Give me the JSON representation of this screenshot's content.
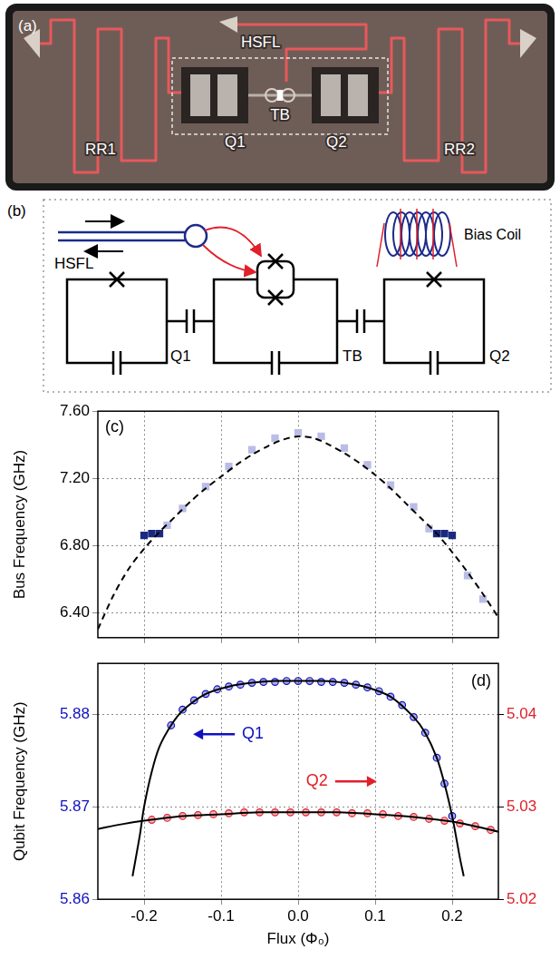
{
  "figure": {
    "a": {
      "label": "(a)",
      "labels": {
        "hsfl": "HSFL",
        "q1": "Q1",
        "q2": "Q2",
        "tb": "TB",
        "rr1": "RR1",
        "rr2": "RR2"
      }
    },
    "b": {
      "label": "(b)",
      "labels": {
        "hsfl": "HSFL",
        "bias_coil": "Bias Coil",
        "q1": "Q1",
        "tb": "TB",
        "q2": "Q2"
      }
    }
  },
  "chart_data": [
    {
      "panel_label": "(c)",
      "type": "scatter",
      "y_label": "Bus Frequency (GHz)",
      "xlim": [
        -0.26,
        0.26
      ],
      "xticks": [
        -0.2,
        -0.1,
        {
          "value": 0,
          "label": "0.0"
        },
        0.1,
        0.2
      ],
      "ylim": [
        6.25,
        7.6
      ],
      "yticks": [
        {
          "value": 6.4,
          "label": "6.40"
        },
        {
          "value": 6.8,
          "label": "6.80"
        },
        {
          "value": 7.2,
          "label": "7.20"
        },
        {
          "value": 7.6,
          "label": "7.60"
        }
      ],
      "grid": true,
      "tick_labels": "y",
      "series": [
        {
          "type": "scatter",
          "marker": "square",
          "color": "#b9bde6",
          "x": [
            -0.17,
            -0.15,
            -0.12,
            -0.09,
            -0.06,
            -0.03,
            0,
            0.03,
            0.06,
            0.09,
            0.12,
            0.15,
            0.17,
            0.22,
            0.24
          ],
          "values": [
            6.92,
            7.02,
            7.15,
            7.27,
            7.37,
            7.44,
            7.47,
            7.45,
            7.38,
            7.28,
            7.16,
            7.03,
            6.9,
            6.62,
            6.48
          ]
        },
        {
          "type": "scatter",
          "marker": "square",
          "color": "#1b2a80",
          "x": [
            -0.2,
            -0.19,
            -0.18,
            0.18,
            0.19,
            0.2
          ],
          "values": [
            6.86,
            6.87,
            6.87,
            6.87,
            6.87,
            6.86
          ]
        },
        {
          "type": "line",
          "line_style": "dashed",
          "color": "#000000",
          "x": [
            -0.26,
            -0.24,
            -0.22,
            -0.2,
            -0.18,
            -0.16,
            -0.14,
            -0.12,
            -0.1,
            -0.08,
            -0.06,
            -0.04,
            -0.02,
            0,
            0.02,
            0.04,
            0.06,
            0.08,
            0.1,
            0.12,
            0.14,
            0.16,
            0.18,
            0.2,
            0.22,
            0.24,
            0.26
          ],
          "values": [
            6.3,
            6.5,
            6.66,
            6.78,
            6.88,
            6.97,
            7.06,
            7.14,
            7.21,
            7.28,
            7.34,
            7.39,
            7.43,
            7.45,
            7.44,
            7.4,
            7.35,
            7.29,
            7.22,
            7.14,
            7.05,
            6.96,
            6.87,
            6.76,
            6.64,
            6.51,
            6.37
          ]
        }
      ]
    },
    {
      "panel_label": "(d)",
      "type": "scatter",
      "x_label": "Flux (Φ₀)",
      "y_label": "Qubit Frequency (GHz)",
      "xlim": [
        -0.26,
        0.26
      ],
      "xticks": [
        -0.2,
        -0.1,
        {
          "value": 0,
          "label": "0.0"
        },
        0.1,
        0.2
      ],
      "ylim": [
        5.86,
        5.8855
      ],
      "yticks": [
        5.86,
        5.87,
        5.88
      ],
      "y2lim": [
        5.02,
        5.0455
      ],
      "y2ticks": [
        5.02,
        5.03,
        5.04
      ],
      "grid": true,
      "annotations": [
        {
          "text": "Q1",
          "color": "#1010c0",
          "axis": "y"
        },
        {
          "text": "Q2",
          "color": "#e0202a",
          "axis": "y2"
        }
      ],
      "series": [
        {
          "type": "scatter",
          "marker": "circle",
          "color": "#1010c0",
          "x": [
            -0.165,
            -0.15,
            -0.135,
            -0.12,
            -0.105,
            -0.09,
            -0.075,
            -0.06,
            -0.045,
            -0.03,
            -0.015,
            0,
            0.015,
            0.03,
            0.045,
            0.06,
            0.075,
            0.09,
            0.105,
            0.12,
            0.135,
            0.15,
            0.165,
            0.18,
            0.19,
            0.2
          ],
          "values": [
            5.8788,
            5.8805,
            5.8815,
            5.8822,
            5.8827,
            5.883,
            5.8832,
            5.8834,
            5.8835,
            5.8835,
            5.8836,
            5.8836,
            5.8836,
            5.8835,
            5.8835,
            5.8834,
            5.8832,
            5.8829,
            5.8825,
            5.8819,
            5.881,
            5.8797,
            5.878,
            5.8753,
            5.8725,
            5.869
          ]
        },
        {
          "type": "line",
          "line_style": "solid",
          "color": "#000000",
          "x": [
            -0.215,
            -0.21,
            -0.205,
            -0.2,
            -0.19,
            -0.18,
            -0.165,
            -0.15,
            -0.12,
            -0.09,
            -0.06,
            -0.03,
            0,
            0.03,
            0.06,
            0.09,
            0.12,
            0.15,
            0.165,
            0.18,
            0.19,
            0.2,
            0.205,
            0.21,
            0.215
          ],
          "values": [
            5.8625,
            5.8648,
            5.8672,
            5.87,
            5.8738,
            5.8765,
            5.8788,
            5.8804,
            5.8822,
            5.883,
            5.8834,
            5.8836,
            5.8836,
            5.8836,
            5.8834,
            5.8829,
            5.8819,
            5.8797,
            5.878,
            5.8753,
            5.8725,
            5.869,
            5.8668,
            5.8645,
            5.8625
          ]
        },
        {
          "type": "scatter",
          "marker": "circle",
          "color": "#e0202a",
          "axis": "y2",
          "x": [
            -0.19,
            -0.17,
            -0.15,
            -0.13,
            -0.11,
            -0.09,
            -0.07,
            -0.05,
            -0.03,
            -0.01,
            0.01,
            0.03,
            0.05,
            0.07,
            0.09,
            0.11,
            0.13,
            0.15,
            0.17,
            0.19,
            0.21,
            0.23,
            0.25
          ],
          "values": [
            5.0286,
            5.0288,
            5.029,
            5.0291,
            5.0292,
            5.0293,
            5.0294,
            5.0294,
            5.0294,
            5.0294,
            5.0294,
            5.0294,
            5.0294,
            5.0293,
            5.0293,
            5.0292,
            5.029,
            5.0289,
            5.0287,
            5.0285,
            5.0282,
            5.0279,
            5.0275
          ]
        },
        {
          "type": "line",
          "line_style": "solid",
          "color": "#000000",
          "axis": "y2",
          "x": [
            -0.26,
            -0.23,
            -0.2,
            -0.15,
            -0.1,
            -0.05,
            0,
            0.05,
            0.1,
            0.15,
            0.2,
            0.23,
            0.26
          ],
          "values": [
            5.0276,
            5.0281,
            5.0285,
            5.029,
            5.0292,
            5.0294,
            5.0294,
            5.0294,
            5.0292,
            5.0289,
            5.0284,
            5.0279,
            5.0273
          ]
        }
      ]
    }
  ]
}
